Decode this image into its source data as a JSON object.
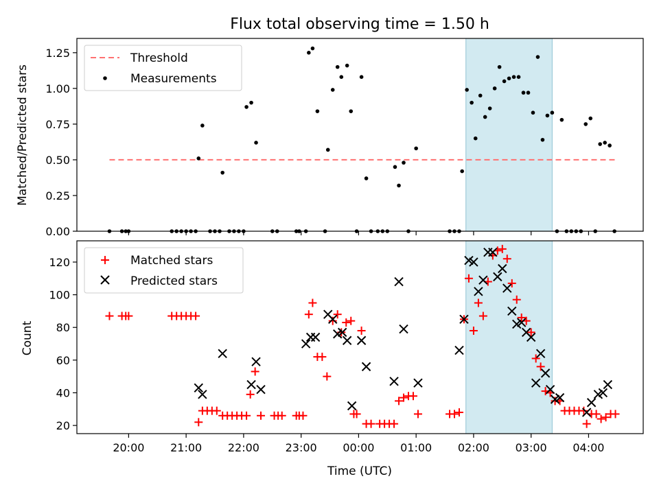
{
  "chart_data": [
    {
      "type": "scatter",
      "title": "Flux total observing time = 1.50 h",
      "xlabel": "",
      "ylabel": "Matched/Predicted stars",
      "ylim": [
        0,
        1.35
      ],
      "yticks": [
        "0.00",
        "0.25",
        "0.50",
        "0.75",
        "1.00",
        "1.25"
      ],
      "ytick_values": [
        0,
        0.25,
        0.5,
        0.75,
        1.0,
        1.25
      ],
      "legend": {
        "placement": "top-left",
        "entries": [
          "Threshold",
          "Measurements"
        ]
      },
      "threshold": {
        "name": "Threshold",
        "value": 0.5,
        "x_start": "19:40",
        "x_end": "04:28",
        "color": "#ff7070"
      },
      "highlight": {
        "x_start": "01:52",
        "x_end": "03:22",
        "color": "#add8e6"
      },
      "series": [
        {
          "name": "Measurements",
          "color": "#000000",
          "points": [
            [
              "19:40",
              0
            ],
            [
              "19:53",
              0
            ],
            [
              "19:57",
              0
            ],
            [
              "20:00",
              0
            ],
            [
              "20:45",
              0
            ],
            [
              "20:50",
              0
            ],
            [
              "20:55",
              0
            ],
            [
              "21:00",
              0
            ],
            [
              "21:05",
              0
            ],
            [
              "21:10",
              0
            ],
            [
              "21:13",
              0.51
            ],
            [
              "21:17",
              0.74
            ],
            [
              "21:25",
              0
            ],
            [
              "21:30",
              0
            ],
            [
              "21:35",
              0
            ],
            [
              "21:38",
              0.41
            ],
            [
              "21:45",
              0
            ],
            [
              "21:50",
              0
            ],
            [
              "21:55",
              0
            ],
            [
              "22:00",
              0
            ],
            [
              "22:03",
              0.87
            ],
            [
              "22:08",
              0.9
            ],
            [
              "22:13",
              0.62
            ],
            [
              "22:30",
              0
            ],
            [
              "22:35",
              0
            ],
            [
              "22:55",
              0
            ],
            [
              "22:58",
              0
            ],
            [
              "23:05",
              0
            ],
            [
              "23:08",
              1.25
            ],
            [
              "23:12",
              1.28
            ],
            [
              "23:17",
              0.84
            ],
            [
              "23:25",
              0
            ],
            [
              "23:28",
              0.57
            ],
            [
              "23:33",
              0.99
            ],
            [
              "23:38",
              1.15
            ],
            [
              "23:42",
              1.08
            ],
            [
              "23:48",
              1.16
            ],
            [
              "23:52",
              0.84
            ],
            [
              "23:58",
              0
            ],
            [
              "00:03",
              1.08
            ],
            [
              "00:08",
              0.37
            ],
            [
              "00:13",
              0
            ],
            [
              "00:20",
              0
            ],
            [
              "00:25",
              0
            ],
            [
              "00:30",
              0
            ],
            [
              "00:38",
              0.45
            ],
            [
              "00:42",
              0.32
            ],
            [
              "00:47",
              0.48
            ],
            [
              "00:52",
              0
            ],
            [
              "01:00",
              0.58
            ],
            [
              "01:35",
              0
            ],
            [
              "01:40",
              0
            ],
            [
              "01:45",
              0
            ],
            [
              "01:48",
              0.42
            ],
            [
              "01:53",
              0.99
            ],
            [
              "01:58",
              0.9
            ],
            [
              "02:02",
              0.65
            ],
            [
              "02:07",
              0.95
            ],
            [
              "02:12",
              0.8
            ],
            [
              "02:17",
              0.86
            ],
            [
              "02:22",
              1.0
            ],
            [
              "02:27",
              1.15
            ],
            [
              "02:32",
              1.05
            ],
            [
              "02:37",
              1.07
            ],
            [
              "02:42",
              1.08
            ],
            [
              "02:47",
              1.08
            ],
            [
              "02:52",
              0.97
            ],
            [
              "02:57",
              0.97
            ],
            [
              "03:02",
              0.83
            ],
            [
              "03:07",
              1.22
            ],
            [
              "03:12",
              0.64
            ],
            [
              "03:17",
              0.81
            ],
            [
              "03:22",
              0.83
            ],
            [
              "03:27",
              0
            ],
            [
              "03:32",
              0.78
            ],
            [
              "03:37",
              0
            ],
            [
              "03:42",
              0
            ],
            [
              "03:47",
              0
            ],
            [
              "03:52",
              0
            ],
            [
              "03:57",
              0.75
            ],
            [
              "04:02",
              0.79
            ],
            [
              "04:07",
              0
            ],
            [
              "04:12",
              0.61
            ],
            [
              "04:17",
              0.62
            ],
            [
              "04:22",
              0.6
            ],
            [
              "04:27",
              0
            ]
          ]
        }
      ]
    },
    {
      "type": "scatter",
      "xlabel": "Time (UTC)",
      "ylabel": "Count",
      "ylim": [
        15,
        133
      ],
      "yticks": [
        "20",
        "40",
        "60",
        "80",
        "100",
        "120"
      ],
      "ytick_values": [
        20,
        40,
        60,
        80,
        100,
        120
      ],
      "xticks": [
        "20:00",
        "21:00",
        "22:00",
        "23:00",
        "00:00",
        "01:00",
        "02:00",
        "03:00",
        "04:00"
      ],
      "legend": {
        "placement": "top-left",
        "entries": [
          "Matched stars",
          "Predicted stars"
        ]
      },
      "highlight": {
        "x_start": "01:52",
        "x_end": "03:22",
        "color": "#add8e6"
      },
      "series": [
        {
          "name": "Matched stars",
          "marker": "plus",
          "color": "#ff0000",
          "points": [
            [
              "19:40",
              87
            ],
            [
              "19:53",
              87
            ],
            [
              "19:57",
              87
            ],
            [
              "20:00",
              87
            ],
            [
              "20:45",
              87
            ],
            [
              "20:50",
              87
            ],
            [
              "20:55",
              87
            ],
            [
              "21:00",
              87
            ],
            [
              "21:05",
              87
            ],
            [
              "21:10",
              87
            ],
            [
              "21:13",
              22
            ],
            [
              "21:17",
              29
            ],
            [
              "21:22",
              29
            ],
            [
              "21:27",
              29
            ],
            [
              "21:32",
              29
            ],
            [
              "21:38",
              26
            ],
            [
              "21:43",
              26
            ],
            [
              "21:48",
              26
            ],
            [
              "21:53",
              26
            ],
            [
              "21:58",
              26
            ],
            [
              "22:03",
              26
            ],
            [
              "22:07",
              39
            ],
            [
              "22:12",
              53
            ],
            [
              "22:18",
              26
            ],
            [
              "22:32",
              26
            ],
            [
              "22:36",
              26
            ],
            [
              "22:40",
              26
            ],
            [
              "22:55",
              26
            ],
            [
              "22:58",
              26
            ],
            [
              "23:02",
              26
            ],
            [
              "23:08",
              88
            ],
            [
              "23:12",
              95
            ],
            [
              "23:17",
              62
            ],
            [
              "23:22",
              62
            ],
            [
              "23:27",
              50
            ],
            [
              "23:33",
              84
            ],
            [
              "23:38",
              88
            ],
            [
              "23:42",
              77
            ],
            [
              "23:47",
              83
            ],
            [
              "23:52",
              84
            ],
            [
              "23:55",
              27
            ],
            [
              "23:58",
              27
            ],
            [
              "00:03",
              78
            ],
            [
              "00:08",
              21
            ],
            [
              "00:13",
              21
            ],
            [
              "00:22",
              21
            ],
            [
              "00:27",
              21
            ],
            [
              "00:32",
              21
            ],
            [
              "00:37",
              21
            ],
            [
              "00:42",
              35
            ],
            [
              "00:47",
              37
            ],
            [
              "00:52",
              38
            ],
            [
              "00:57",
              38
            ],
            [
              "01:02",
              27
            ],
            [
              "01:35",
              27
            ],
            [
              "01:40",
              27
            ],
            [
              "01:45",
              28
            ],
            [
              "01:50",
              85
            ],
            [
              "01:55",
              110
            ],
            [
              "02:00",
              78
            ],
            [
              "02:05",
              95
            ],
            [
              "02:10",
              87
            ],
            [
              "02:15",
              108
            ],
            [
              "02:20",
              124
            ],
            [
              "02:25",
              127
            ],
            [
              "02:30",
              128
            ],
            [
              "02:35",
              122
            ],
            [
              "02:40",
              107
            ],
            [
              "02:45",
              97
            ],
            [
              "02:50",
              86
            ],
            [
              "02:55",
              84
            ],
            [
              "03:00",
              77
            ],
            [
              "03:05",
              61
            ],
            [
              "03:10",
              56
            ],
            [
              "03:15",
              41
            ],
            [
              "03:20",
              40
            ],
            [
              "03:25",
              35
            ],
            [
              "03:30",
              35
            ],
            [
              "03:35",
              29
            ],
            [
              "03:40",
              29
            ],
            [
              "03:45",
              29
            ],
            [
              "03:50",
              29
            ],
            [
              "03:55",
              29
            ],
            [
              "03:58",
              21
            ],
            [
              "04:03",
              27
            ],
            [
              "04:08",
              27
            ],
            [
              "04:13",
              24
            ],
            [
              "04:18",
              25
            ],
            [
              "04:23",
              27
            ],
            [
              "04:28",
              27
            ]
          ]
        },
        {
          "name": "Predicted stars",
          "marker": "x",
          "color": "#000000",
          "points": [
            [
              "21:13",
              43
            ],
            [
              "21:17",
              39
            ],
            [
              "21:38",
              64
            ],
            [
              "22:08",
              45
            ],
            [
              "22:13",
              59
            ],
            [
              "22:18",
              42
            ],
            [
              "23:05",
              70
            ],
            [
              "23:10",
              74
            ],
            [
              "23:15",
              74
            ],
            [
              "23:28",
              88
            ],
            [
              "23:33",
              85
            ],
            [
              "23:38",
              76
            ],
            [
              "23:43",
              77
            ],
            [
              "23:48",
              72
            ],
            [
              "23:53",
              32
            ],
            [
              "00:03",
              72
            ],
            [
              "00:08",
              56
            ],
            [
              "00:37",
              47
            ],
            [
              "00:42",
              108
            ],
            [
              "00:47",
              79
            ],
            [
              "01:02",
              46
            ],
            [
              "01:45",
              66
            ],
            [
              "01:50",
              85
            ],
            [
              "01:55",
              121
            ],
            [
              "02:00",
              120
            ],
            [
              "02:05",
              102
            ],
            [
              "02:10",
              109
            ],
            [
              "02:15",
              126
            ],
            [
              "02:20",
              126
            ],
            [
              "02:25",
              111
            ],
            [
              "02:30",
              116
            ],
            [
              "02:35",
              104
            ],
            [
              "02:40",
              90
            ],
            [
              "02:45",
              82
            ],
            [
              "02:50",
              83
            ],
            [
              "02:55",
              77
            ],
            [
              "03:00",
              74
            ],
            [
              "03:05",
              46
            ],
            [
              "03:10",
              64
            ],
            [
              "03:15",
              52
            ],
            [
              "03:20",
              42
            ],
            [
              "03:25",
              36
            ],
            [
              "03:30",
              37
            ],
            [
              "03:58",
              28
            ],
            [
              "04:03",
              34
            ],
            [
              "04:10",
              39
            ],
            [
              "04:15",
              40
            ],
            [
              "04:20",
              45
            ]
          ]
        }
      ]
    }
  ]
}
